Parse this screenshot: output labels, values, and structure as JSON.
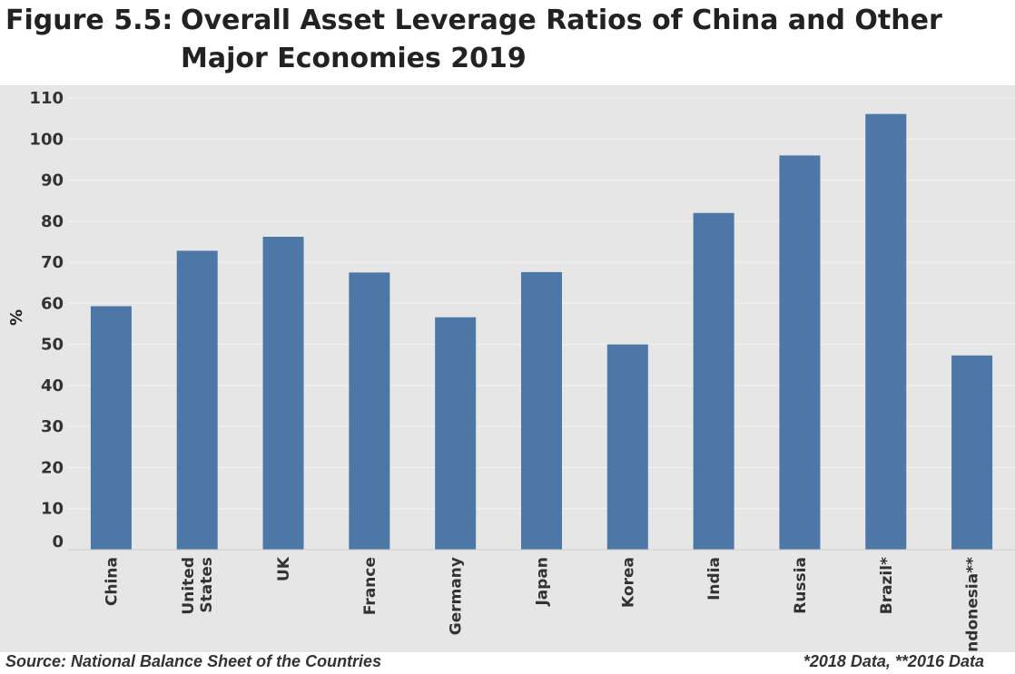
{
  "figure": {
    "label": "Figure 5.5:",
    "title": "Overall Asset Leverage Ratios of China and Other Major Economies 2019"
  },
  "chart_data": {
    "type": "bar",
    "title": "Overall Asset Leverage Ratios of China and Other Major Economies 2019",
    "xlabel": "",
    "ylabel": "%",
    "ylim": [
      0,
      110
    ],
    "yticks": [
      0,
      10,
      20,
      30,
      40,
      50,
      60,
      70,
      80,
      90,
      100,
      110
    ],
    "grid": true,
    "categories": [
      "China",
      "United States",
      "UK",
      "France",
      "Germany",
      "Japan",
      "Korea",
      "India",
      "Russia",
      "Brazil*",
      "Indonesia**"
    ],
    "values": [
      59.3,
      72.8,
      76.2,
      67.5,
      56.6,
      67.6,
      50.0,
      82.0,
      96.0,
      106.1,
      47.3
    ],
    "bar_color": "#4c77a6",
    "background_color": "#e6e6e6"
  },
  "footer": {
    "source": "Source: National Balance Sheet of the Countries",
    "note": "*2018 Data, **2016 Data"
  }
}
